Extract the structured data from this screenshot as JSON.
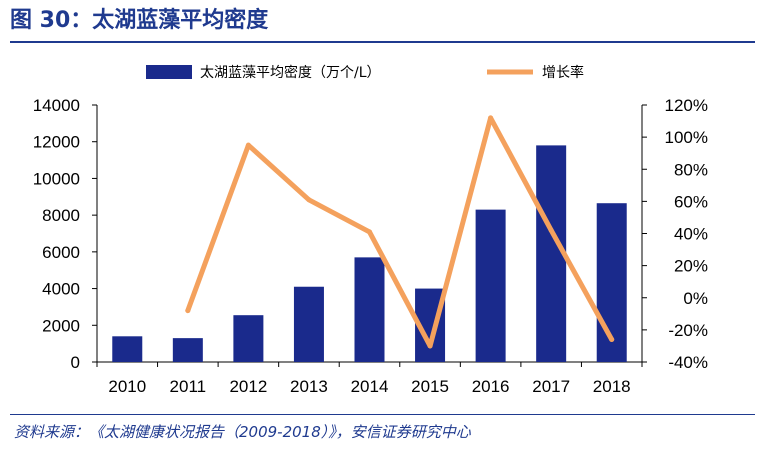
{
  "figure": {
    "title": "图 30：太湖蓝藻平均密度",
    "source": "资料来源：《太湖健康状况报告（2009-2018）》，安信证券研究中心",
    "accent_color": "#1f3a8f"
  },
  "chart_data": {
    "type": "bar+line",
    "categories": [
      "2010",
      "2011",
      "2012",
      "2013",
      "2014",
      "2015",
      "2016",
      "2017",
      "2018"
    ],
    "series": [
      {
        "name": "太湖蓝藻平均密度（万个/L）",
        "type": "bar",
        "axis": "left",
        "color": "#1a2a8c",
        "values": [
          1400,
          1300,
          2550,
          4100,
          5700,
          4000,
          8300,
          11800,
          8650
        ]
      },
      {
        "name": "增长率",
        "type": "line",
        "axis": "right",
        "color": "#f4a15d",
        "values": [
          null,
          -0.08,
          0.95,
          0.61,
          0.41,
          -0.3,
          1.12,
          0.42,
          -0.26
        ]
      }
    ],
    "y_left": {
      "range": [
        0,
        14000
      ],
      "ticks": [
        "0",
        "2000",
        "4000",
        "6000",
        "8000",
        "10000",
        "12000",
        "14000"
      ]
    },
    "y_right": {
      "range": [
        -0.4,
        1.2
      ],
      "ticks": [
        "-40%",
        "-20%",
        "0%",
        "20%",
        "40%",
        "60%",
        "80%",
        "100%",
        "120%"
      ]
    },
    "grid": false,
    "legend_position": "top"
  }
}
